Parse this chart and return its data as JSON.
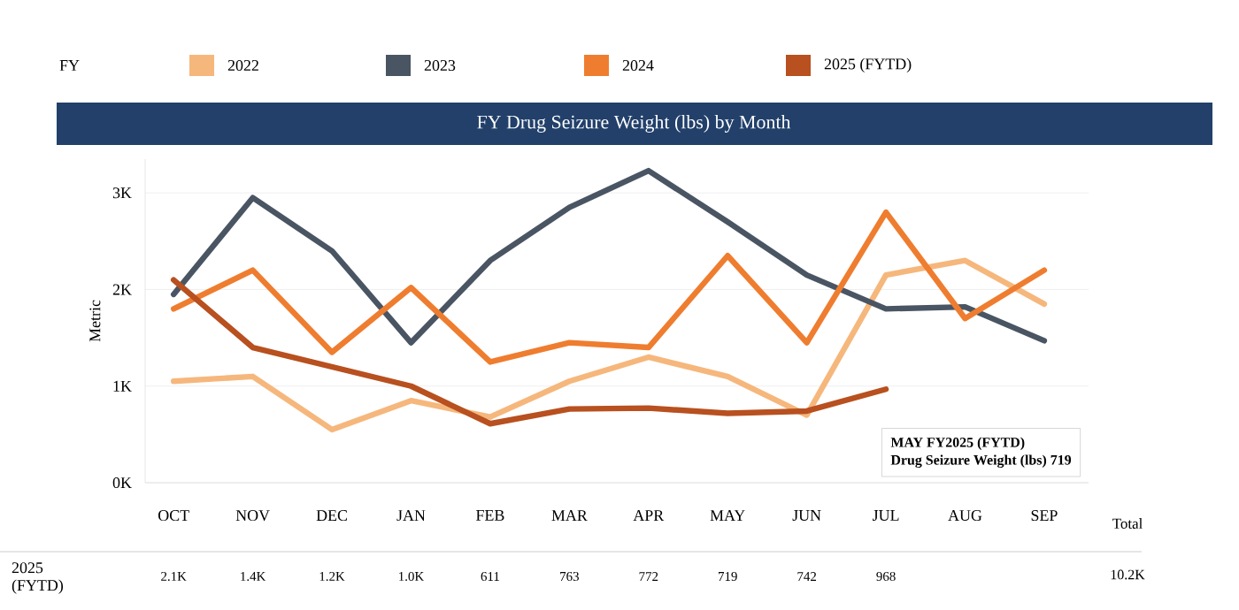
{
  "chart_data": {
    "type": "line",
    "title": "FY Drug Seizure Weight (lbs) by Month",
    "ylabel": "Metric",
    "legend_title": "FY",
    "categories": [
      "OCT",
      "NOV",
      "DEC",
      "JAN",
      "FEB",
      "MAR",
      "APR",
      "MAY",
      "JUN",
      "JUL",
      "AUG",
      "SEP"
    ],
    "series": [
      {
        "name": "2022",
        "color": "#f6b77c",
        "values": [
          1050,
          1100,
          550,
          850,
          680,
          1050,
          1300,
          1100,
          700,
          2150,
          2300,
          1850
        ]
      },
      {
        "name": "2023",
        "color": "#4a5563",
        "values": [
          1950,
          2950,
          2400,
          1450,
          2300,
          2850,
          3230,
          2700,
          2150,
          1800,
          1820,
          1470
        ]
      },
      {
        "name": "2024",
        "color": "#ef7d2f",
        "values": [
          1800,
          2200,
          1350,
          2020,
          1250,
          1450,
          1400,
          2350,
          1450,
          2800,
          1700,
          2200
        ]
      },
      {
        "name": "2025 (FYTD)",
        "color": "#b8501f",
        "values": [
          2100,
          1400,
          1200,
          1000,
          611,
          763,
          772,
          719,
          742,
          968,
          null,
          null
        ],
        "value_labels": [
          "2.1K",
          "1.4K",
          "1.2K",
          "1.0K",
          "611",
          "763",
          "772",
          "719",
          "742",
          "968",
          null,
          null
        ]
      }
    ],
    "ylim": [
      0,
      3350
    ],
    "yticks": [
      {
        "value": 0,
        "label": "0K"
      },
      {
        "value": 1000,
        "label": "1K"
      },
      {
        "value": 2000,
        "label": "2K"
      },
      {
        "value": 3000,
        "label": "3K"
      }
    ],
    "grid": "y",
    "legend": "top",
    "marker": "none",
    "line_style": "solid",
    "annotations": [
      "**MAY FY2025 (FYTD)**",
      "**Drug Seizure Weight (lbs) 719**",
      "Total",
      "10.2K"
    ]
  }
}
